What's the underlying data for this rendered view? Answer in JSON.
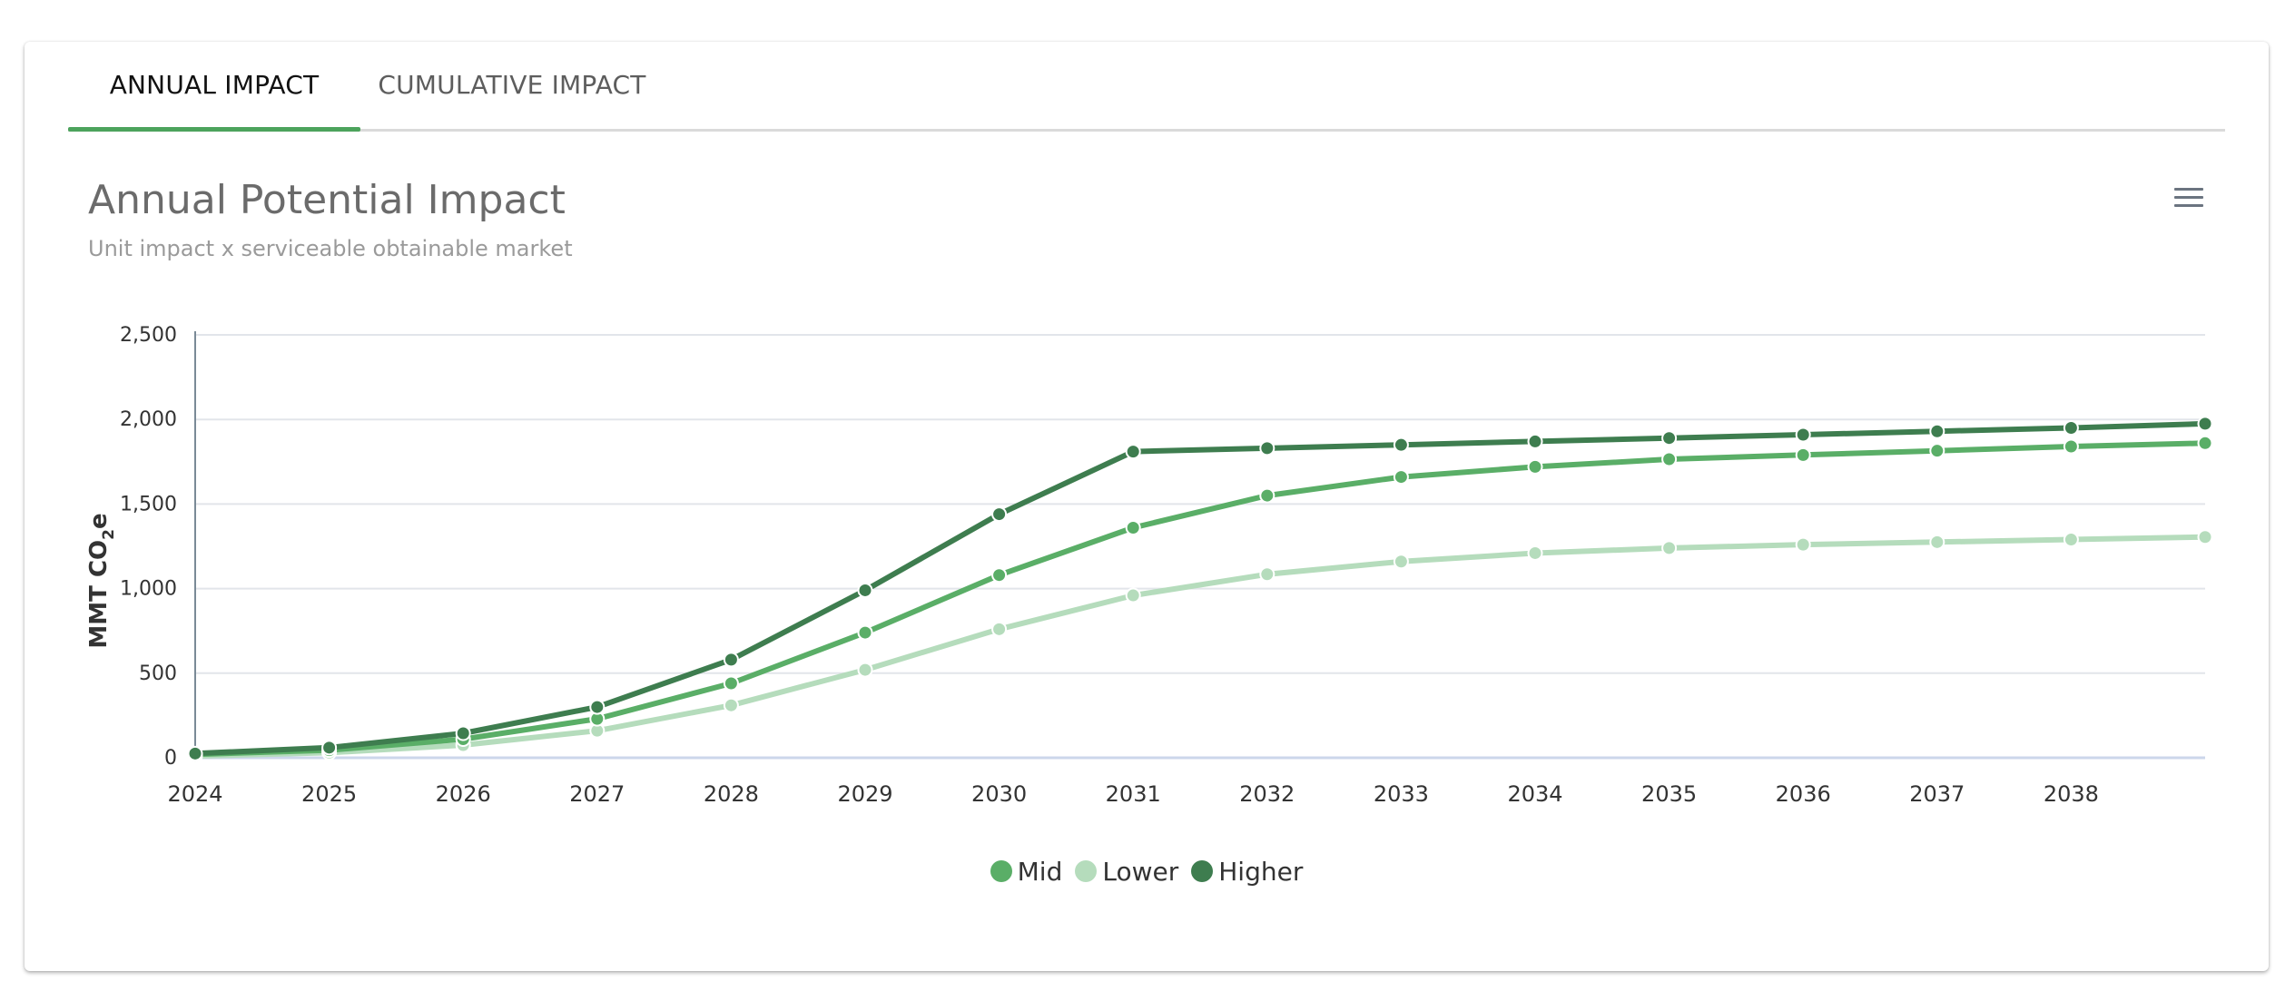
{
  "tabs": [
    {
      "label": "ANNUAL IMPACT",
      "active": true
    },
    {
      "label": "CUMULATIVE IMPACT",
      "active": false
    }
  ],
  "menu_icon": "hamburger-menu-icon",
  "colors": {
    "accent": "#4ca35c",
    "mid": "#5aae67",
    "lower": "#b5dcbc",
    "higher": "#3e7d4f"
  },
  "chart_data": {
    "type": "line",
    "title": "Annual Potential Impact",
    "subtitle": "Unit impact x serviceable obtainable market",
    "ylabel_main": "MMT CO",
    "ylabel_sub": "2",
    "ylabel_tail": "e",
    "xlabel": "",
    "x": [
      2024,
      2025,
      2026,
      2027,
      2028,
      2029,
      2030,
      2031,
      2032,
      2033,
      2034,
      2035,
      2036,
      2037,
      2038,
      2039
    ],
    "x_tick_labels": [
      "2024",
      "2025",
      "2026",
      "2027",
      "2028",
      "2029",
      "2030",
      "2031",
      "2032",
      "2033",
      "2034",
      "2035",
      "2036",
      "2037",
      "2038"
    ],
    "ylim": [
      0,
      2500
    ],
    "y_ticks": [
      0,
      500,
      1000,
      1500,
      2000,
      2500
    ],
    "y_tick_labels": [
      "0",
      "500",
      "1,000",
      "1,500",
      "2,000",
      "2,500"
    ],
    "grid": true,
    "legend_position": "bottom-center",
    "series": [
      {
        "name": "Mid",
        "color": "#5aae67",
        "values": [
          20,
          45,
          110,
          230,
          440,
          740,
          1080,
          1360,
          1550,
          1660,
          1720,
          1765,
          1790,
          1815,
          1840,
          1860
        ]
      },
      {
        "name": "Lower",
        "color": "#b5dcbc",
        "values": [
          10,
          30,
          75,
          160,
          310,
          520,
          760,
          960,
          1085,
          1160,
          1210,
          1240,
          1260,
          1275,
          1290,
          1305
        ]
      },
      {
        "name": "Higher",
        "color": "#3e7d4f",
        "values": [
          25,
          60,
          145,
          300,
          580,
          990,
          1440,
          1810,
          1830,
          1850,
          1870,
          1890,
          1910,
          1930,
          1950,
          1975
        ]
      }
    ]
  }
}
